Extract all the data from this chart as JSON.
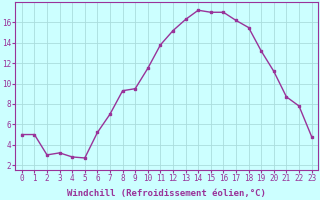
{
  "x": [
    0,
    1,
    2,
    3,
    4,
    5,
    6,
    7,
    8,
    9,
    10,
    11,
    12,
    13,
    14,
    15,
    16,
    17,
    18,
    19,
    20,
    21,
    22,
    23
  ],
  "y": [
    5.0,
    5.0,
    3.0,
    3.2,
    2.8,
    2.7,
    5.2,
    7.0,
    9.3,
    9.5,
    11.5,
    13.8,
    15.2,
    16.3,
    17.2,
    17.0,
    17.0,
    16.2,
    15.5,
    13.2,
    11.2,
    8.7,
    7.8,
    4.8
  ],
  "line_color": "#993399",
  "marker": "s",
  "marker_size": 2,
  "bg_color": "#ccffff",
  "grid_color": "#aadddd",
  "xlabel": "Windchill (Refroidissement éolien,°C)",
  "xlim": [
    -0.5,
    23.5
  ],
  "ylim": [
    1.5,
    18.0
  ],
  "yticks": [
    2,
    4,
    6,
    8,
    10,
    12,
    14,
    16
  ],
  "xticks": [
    0,
    1,
    2,
    3,
    4,
    5,
    6,
    7,
    8,
    9,
    10,
    11,
    12,
    13,
    14,
    15,
    16,
    17,
    18,
    19,
    20,
    21,
    22,
    23
  ],
  "xlabel_fontsize": 6.5,
  "tick_fontsize": 5.5,
  "line_width": 1.0
}
